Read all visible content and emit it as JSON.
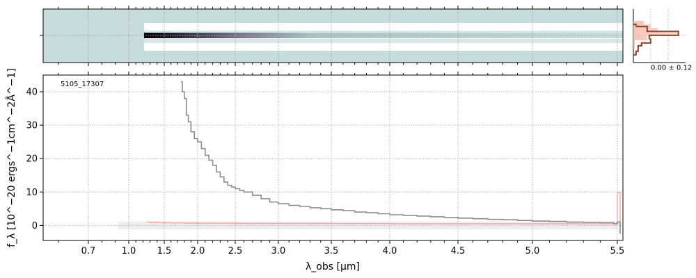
{
  "chart_data": [
    {
      "type": "heatmap",
      "description_role": "2D spectrum",
      "grid": true,
      "colormap": [
        "#c5dcdb",
        "#ffffff",
        "#6e6a86",
        "#000000"
      ],
      "trace_x_range_um": [
        1.25,
        5.5
      ]
    },
    {
      "type": "line",
      "description_role": "cross-dispersion profile",
      "annotation": "0.00 ± 0.12",
      "colors": {
        "profile": "#5a2a1a",
        "profile_fill": "#f4b9a8"
      }
    },
    {
      "type": "line",
      "annotation": "5105_17307",
      "xlabel": "λ_obs [μm]",
      "ylabel": "f_λ [10^−20 ergs^−1cm^−2Å^−1]",
      "xlim": [
        0.55,
        5.52
      ],
      "ylim": [
        -4.5,
        45
      ],
      "yticks": [
        0,
        10,
        20,
        30,
        40
      ],
      "xticks": [
        {
          "value": 0.7,
          "label": "0.7"
        },
        {
          "value": 1.0,
          "label": "1.0"
        },
        {
          "value": 1.5,
          "label": "1.5"
        },
        {
          "value": 2.0,
          "label": "2.0"
        },
        {
          "value": 2.5,
          "label": "2.5"
        },
        {
          "value": 3.0,
          "label": "3.0"
        },
        {
          "value": 3.5,
          "label": "3.5"
        },
        {
          "value": 4.0,
          "label": "4.0"
        },
        {
          "value": 4.5,
          "label": "4.5"
        },
        {
          "value": 5.0,
          "label": "5.0"
        },
        {
          "value": 5.5,
          "label": "5.5"
        }
      ],
      "grid": true,
      "colors": {
        "flux": "#8c8c8c",
        "error": "#f4a6a0",
        "band": "#eeeeee"
      },
      "series": [
        {
          "role": "flux",
          "x": [
            1.75,
            1.77,
            1.8,
            1.83,
            1.86,
            1.9,
            1.95,
            2.0,
            2.05,
            2.1,
            2.15,
            2.2,
            2.25,
            2.3,
            2.35,
            2.4,
            2.45,
            2.5,
            2.55,
            2.6,
            2.7,
            2.8,
            2.9,
            3.0,
            3.1,
            3.2,
            3.3,
            3.4,
            3.5,
            3.6,
            3.7,
            3.8,
            3.9,
            4.0,
            4.1,
            4.2,
            4.3,
            4.4,
            4.5,
            4.6,
            4.7,
            4.8,
            4.9,
            5.0,
            5.1,
            5.2,
            5.3,
            5.4,
            5.48,
            5.5,
            5.51
          ],
          "y": [
            43,
            40,
            38,
            33,
            31,
            28,
            26,
            25,
            23,
            21,
            19.5,
            18,
            16,
            14.5,
            13,
            12,
            11.5,
            11,
            10.5,
            10,
            9.0,
            8.0,
            7.0,
            6.5,
            6.0,
            5.7,
            5.3,
            5.0,
            4.7,
            4.4,
            4.0,
            3.8,
            3.5,
            3.2,
            3.0,
            2.8,
            2.6,
            2.4,
            2.2,
            2.0,
            1.8,
            1.7,
            1.5,
            1.3,
            1.2,
            1.0,
            0.9,
            0.8,
            0.5,
            1.0,
            -2.5
          ]
        },
        {
          "role": "error",
          "x": [
            1.25,
            1.3,
            1.4,
            1.5,
            1.6,
            1.8,
            2.0,
            2.5,
            3.0,
            3.5,
            4.0,
            4.5,
            5.0,
            5.4,
            5.49,
            5.5,
            5.51
          ],
          "y": [
            1.0,
            0.9,
            0.85,
            0.8,
            0.75,
            0.7,
            0.65,
            0.6,
            0.6,
            0.55,
            0.5,
            0.5,
            0.5,
            0.5,
            0.6,
            9.8,
            -2.0
          ]
        }
      ]
    }
  ]
}
